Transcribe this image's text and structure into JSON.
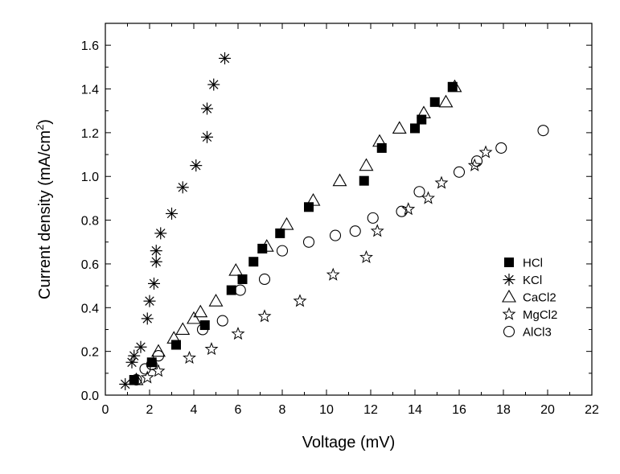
{
  "chart_data": {
    "type": "scatter",
    "title": "",
    "xlabel": "Voltage (mV)",
    "ylabel": "Current density (mA/cm²)",
    "ylabel_main": "Current density (mA/cm",
    "ylabel_sup": "2",
    "ylabel_tail": ")",
    "xlim": [
      0,
      22
    ],
    "ylim": [
      0,
      1.7
    ],
    "xticks": [
      "0",
      "2",
      "4",
      "6",
      "8",
      "10",
      "12",
      "14",
      "16",
      "18",
      "20",
      "22"
    ],
    "yticks": [
      "0.0",
      "0.2",
      "0.4",
      "0.6",
      "0.8",
      "1.0",
      "1.2",
      "1.4",
      "1.6"
    ],
    "grid": false,
    "legend_position": "right",
    "series": [
      {
        "name": "HCl",
        "marker": "filled-square",
        "points": [
          [
            1.3,
            0.07
          ],
          [
            2.1,
            0.15
          ],
          [
            3.2,
            0.23
          ],
          [
            4.5,
            0.32
          ],
          [
            5.7,
            0.48
          ],
          [
            6.2,
            0.53
          ],
          [
            6.7,
            0.61
          ],
          [
            7.1,
            0.67
          ],
          [
            7.9,
            0.74
          ],
          [
            9.2,
            0.86
          ],
          [
            11.7,
            0.98
          ],
          [
            12.5,
            1.13
          ],
          [
            14,
            1.22
          ],
          [
            14.3,
            1.26
          ],
          [
            14.9,
            1.34
          ],
          [
            15.7,
            1.41
          ]
        ]
      },
      {
        "name": "KCl",
        "marker": "asterisk",
        "points": [
          [
            0.9,
            0.05
          ],
          [
            1.2,
            0.15
          ],
          [
            1.3,
            0.18
          ],
          [
            1.6,
            0.22
          ],
          [
            1.9,
            0.35
          ],
          [
            2,
            0.43
          ],
          [
            2.2,
            0.51
          ],
          [
            2.3,
            0.61
          ],
          [
            2.3,
            0.66
          ],
          [
            2.5,
            0.74
          ],
          [
            3,
            0.83
          ],
          [
            3.5,
            0.95
          ],
          [
            4.1,
            1.05
          ],
          [
            4.6,
            1.18
          ],
          [
            4.6,
            1.31
          ],
          [
            4.9,
            1.42
          ],
          [
            5.4,
            1.54
          ]
        ]
      },
      {
        "name": "CaCl2",
        "marker": "open-triangle",
        "points": [
          [
            1.4,
            0.07
          ],
          [
            2.4,
            0.2
          ],
          [
            3.1,
            0.26
          ],
          [
            3.5,
            0.3
          ],
          [
            4,
            0.35
          ],
          [
            4.3,
            0.38
          ],
          [
            5,
            0.43
          ],
          [
            5.9,
            0.57
          ],
          [
            7.3,
            0.68
          ],
          [
            8.2,
            0.78
          ],
          [
            9.4,
            0.89
          ],
          [
            10.6,
            0.98
          ],
          [
            11.8,
            1.05
          ],
          [
            12.4,
            1.16
          ],
          [
            13.3,
            1.22
          ],
          [
            14.4,
            1.29
          ],
          [
            15.4,
            1.34
          ],
          [
            15.8,
            1.41
          ]
        ]
      },
      {
        "name": "MgCl2",
        "marker": "open-star",
        "points": [
          [
            1.9,
            0.08
          ],
          [
            2.4,
            0.11
          ],
          [
            3.8,
            0.17
          ],
          [
            4.8,
            0.21
          ],
          [
            6,
            0.28
          ],
          [
            7.2,
            0.36
          ],
          [
            8.8,
            0.43
          ],
          [
            10.3,
            0.55
          ],
          [
            11.8,
            0.63
          ],
          [
            12.3,
            0.75
          ],
          [
            13.7,
            0.85
          ],
          [
            14.6,
            0.9
          ],
          [
            15.2,
            0.97
          ],
          [
            16.7,
            1.05
          ],
          [
            17.2,
            1.11
          ]
        ]
      },
      {
        "name": "AlCl3",
        "marker": "open-circle",
        "points": [
          [
            1.4,
            0.07
          ],
          [
            1.8,
            0.12
          ],
          [
            2.1,
            0.14
          ],
          [
            2.4,
            0.18
          ],
          [
            4.4,
            0.3
          ],
          [
            5.3,
            0.34
          ],
          [
            6.1,
            0.48
          ],
          [
            7.2,
            0.53
          ],
          [
            8,
            0.66
          ],
          [
            9.2,
            0.7
          ],
          [
            10.4,
            0.73
          ],
          [
            11.3,
            0.75
          ],
          [
            12.1,
            0.81
          ],
          [
            13.4,
            0.84
          ],
          [
            14.2,
            0.93
          ],
          [
            16,
            1.02
          ],
          [
            16.8,
            1.07
          ],
          [
            17.9,
            1.13
          ],
          [
            19.8,
            1.21
          ]
        ]
      }
    ]
  }
}
